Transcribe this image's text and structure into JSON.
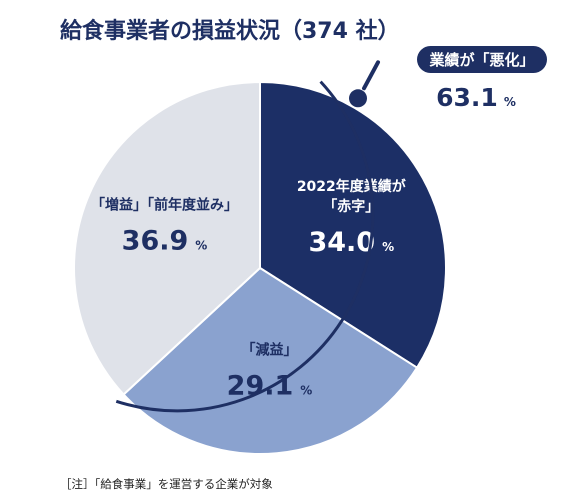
{
  "chart_data": {
    "type": "pie",
    "title": "給食事業者の損益状況（374 社）",
    "unit": "%",
    "slices": [
      {
        "label_lines": [
          "2022年度業績が",
          "「赤字」"
        ],
        "value": 34.0,
        "color": "#1c2f66",
        "text_color": "#ffffff"
      },
      {
        "label_lines": [
          "「減益」"
        ],
        "value": 29.1,
        "color": "#8aa2cf",
        "text_color": "#1e2f63"
      },
      {
        "label_lines": [
          "「増益」「前年度並み」"
        ],
        "value": 36.9,
        "color": "#dfe2e9",
        "text_color": "#1e2f63"
      }
    ],
    "callout": {
      "label": "業績が「悪化」",
      "value": 63.1,
      "unit": "%"
    }
  },
  "note": "［注］「給食事業」を運営する企業が対象"
}
